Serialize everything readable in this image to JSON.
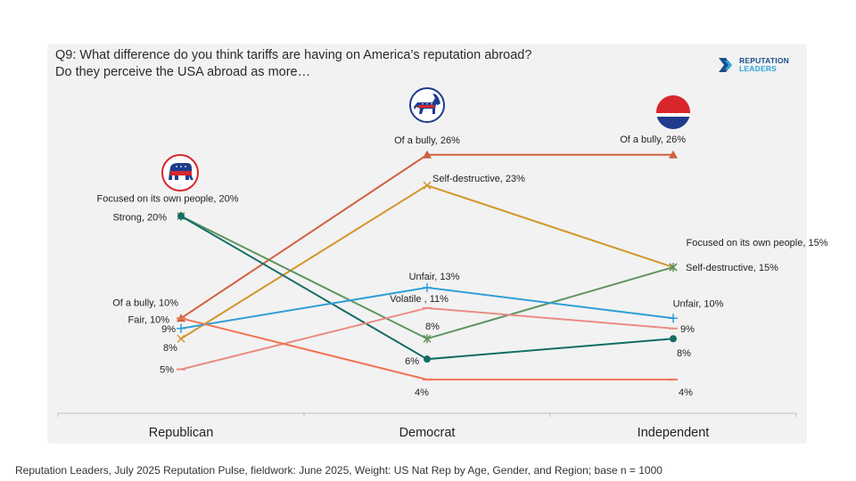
{
  "title": {
    "line1": "Q9: What difference do you think tariffs are having on America’s reputation abroad?",
    "line2": "Do they perceive the USA abroad as more…"
  },
  "logo": {
    "line1": "REPUTATION",
    "line2": "LEADERS"
  },
  "icons": {
    "republican": "republican-elephant-icon",
    "democrat": "democrat-donkey-icon",
    "independent": "independent-stars-icon"
  },
  "footnote": "Reputation Leaders, July 2025 Reputation Pulse, fieldwork: June 2025, Weight: US Nat Rep by Age, Gender, and Region; base n = 1000",
  "colors": {
    "panel": "#f2f2f2",
    "bully": "#d0603e",
    "self_destructive": "#d4952a",
    "focused": "#5f9460",
    "strong": "#146c66",
    "unfair": "#2e9fd6",
    "volatile": "#ea8c84",
    "fair": "#f07453",
    "republican_red": "#d8262c",
    "democrat_blue": "#1e3b8c"
  },
  "chart_data": {
    "type": "line",
    "title": "Q9: What difference do you think tariffs are having on America’s reputation abroad?",
    "xlabel": "",
    "ylabel": "",
    "ylim": [
      0,
      28
    ],
    "grid": false,
    "categories": [
      "Republican",
      "Democrat",
      "Independent"
    ],
    "series": [
      {
        "key": "bully",
        "name": "Of a bully",
        "marker": "triangle",
        "values": [
          10,
          26,
          26
        ],
        "labels": [
          "Of a bully, 10%",
          "Of a bully, 26%",
          "Of a bully, 26%"
        ]
      },
      {
        "key": "self_destructive",
        "name": "Self-destructive",
        "marker": "x",
        "values": [
          8,
          23,
          15
        ],
        "labels": [
          "8%",
          "Self-destructive, 23%",
          "Self-destructive, 15%"
        ]
      },
      {
        "key": "focused",
        "name": "Focused on its own people",
        "marker": "star",
        "values": [
          20,
          8,
          15
        ],
        "labels": [
          "Focused on its own people, 20%",
          "8%",
          "Focused on its own people, 15%"
        ]
      },
      {
        "key": "strong",
        "name": "Strong",
        "marker": "circle",
        "values": [
          20,
          6,
          8
        ],
        "labels": [
          "Strong, 20%",
          "6%",
          "8%"
        ]
      },
      {
        "key": "unfair",
        "name": "Unfair",
        "marker": "plus",
        "values": [
          9,
          13,
          10
        ],
        "labels": [
          "9%",
          "Unfair, 13%",
          "Unfair, 10%"
        ]
      },
      {
        "key": "volatile",
        "name": "Volatile",
        "marker": "dash",
        "values": [
          5,
          11,
          9
        ],
        "labels": [
          "5%",
          "Volatile , 11%",
          "9%"
        ]
      },
      {
        "key": "fair",
        "name": "Fair",
        "marker": "dash",
        "values": [
          10,
          4,
          4
        ],
        "labels": [
          "Fair, 10%",
          "4%",
          "4%"
        ]
      }
    ]
  }
}
